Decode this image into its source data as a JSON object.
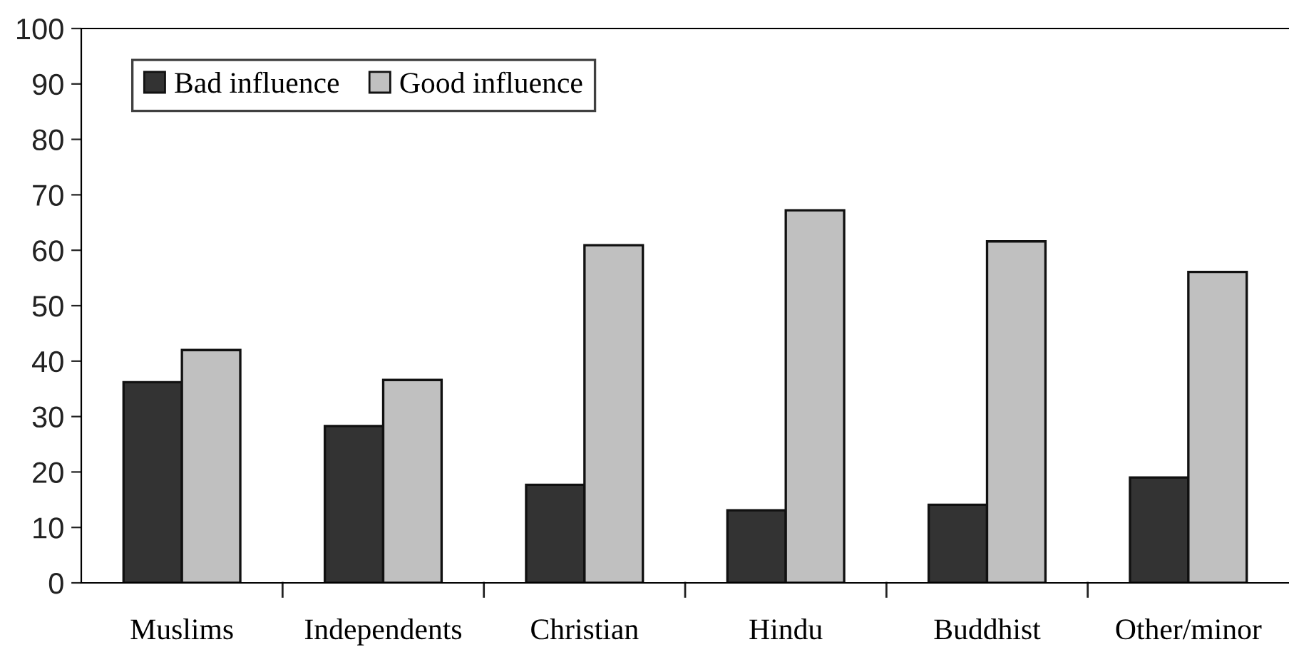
{
  "chart_data": {
    "type": "bar",
    "categories": [
      "Muslims",
      "Independents",
      "Christian",
      "Hindu",
      "Buddhist",
      "Other/minor"
    ],
    "series": [
      {
        "name": "Bad influence",
        "color": "#333333",
        "values": [
          36.2,
          28.3,
          17.7,
          13.1,
          14.1,
          19.0
        ]
      },
      {
        "name": "Good influence",
        "color": "#c0c0c0",
        "values": [
          42.0,
          36.6,
          60.9,
          67.2,
          61.6,
          56.1
        ]
      }
    ],
    "ylim": [
      0,
      100
    ],
    "yticks": [
      0,
      10,
      20,
      30,
      40,
      50,
      60,
      70,
      80,
      90,
      100
    ],
    "grid": false,
    "legend": "top left"
  }
}
